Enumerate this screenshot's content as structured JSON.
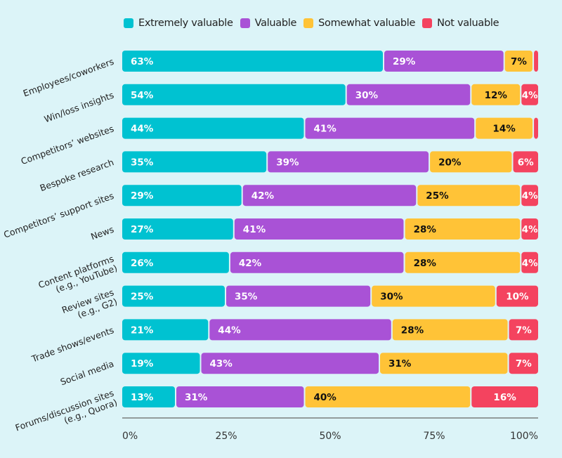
{
  "chart_data": {
    "type": "bar",
    "orientation": "horizontal",
    "stacked": true,
    "categories": [
      [
        "Employees/coworkers"
      ],
      [
        "Win/loss insights"
      ],
      [
        "Competitors’ websites"
      ],
      [
        "Bespoke research"
      ],
      [
        "Competitors’ support sites"
      ],
      [
        "News"
      ],
      [
        "Content platforms",
        "(e.g., YouTube)"
      ],
      [
        "Review sites",
        "(e.g., G2)"
      ],
      [
        "Trade shows/events"
      ],
      [
        "Social media"
      ],
      [
        "Forums/discussion sites",
        "(e.g., Quora)"
      ]
    ],
    "series": [
      {
        "name": "Extremely valuable",
        "color": "#00c2d1",
        "label_color": "#ffffff",
        "values": [
          63,
          54,
          44,
          35,
          29,
          27,
          26,
          25,
          21,
          19,
          13
        ],
        "labels": [
          "63%",
          "54%",
          "44%",
          "35%",
          "29%",
          "27%",
          "26%",
          "25%",
          "21%",
          "19%",
          "13%"
        ]
      },
      {
        "name": "Valuable",
        "color": "#a952d6",
        "label_color": "#ffffff",
        "values": [
          29,
          30,
          41,
          39,
          42,
          41,
          42,
          35,
          44,
          43,
          31
        ],
        "labels": [
          "29%",
          "30%",
          "41%",
          "39%",
          "42%",
          "41%",
          "42%",
          "35%",
          "44%",
          "43%",
          "31%"
        ]
      },
      {
        "name": "Somewhat valuable",
        "color": "#ffc337",
        "label_color": "#111111",
        "values": [
          7,
          12,
          14,
          20,
          25,
          28,
          28,
          30,
          28,
          31,
          40
        ],
        "labels": [
          "7%",
          "12%",
          "14%",
          "20%",
          "25%",
          "28%",
          "28%",
          "30%",
          "28%",
          "31%",
          "40%"
        ]
      },
      {
        "name": "Not valuable",
        "color": "#f4435f",
        "label_color": "#ffffff",
        "values": [
          1,
          4,
          1,
          6,
          4,
          4,
          4,
          10,
          7,
          7,
          16
        ],
        "labels": [
          "",
          "4%",
          "",
          "6%",
          "4%",
          "4%",
          "4%",
          "10%",
          "7%",
          "7%",
          "16%"
        ]
      }
    ],
    "xlim": [
      0,
      100
    ],
    "xticks": [
      "0%",
      "25%",
      "50%",
      "75%",
      "100%"
    ],
    "legend_position": "top",
    "grid": false
  }
}
